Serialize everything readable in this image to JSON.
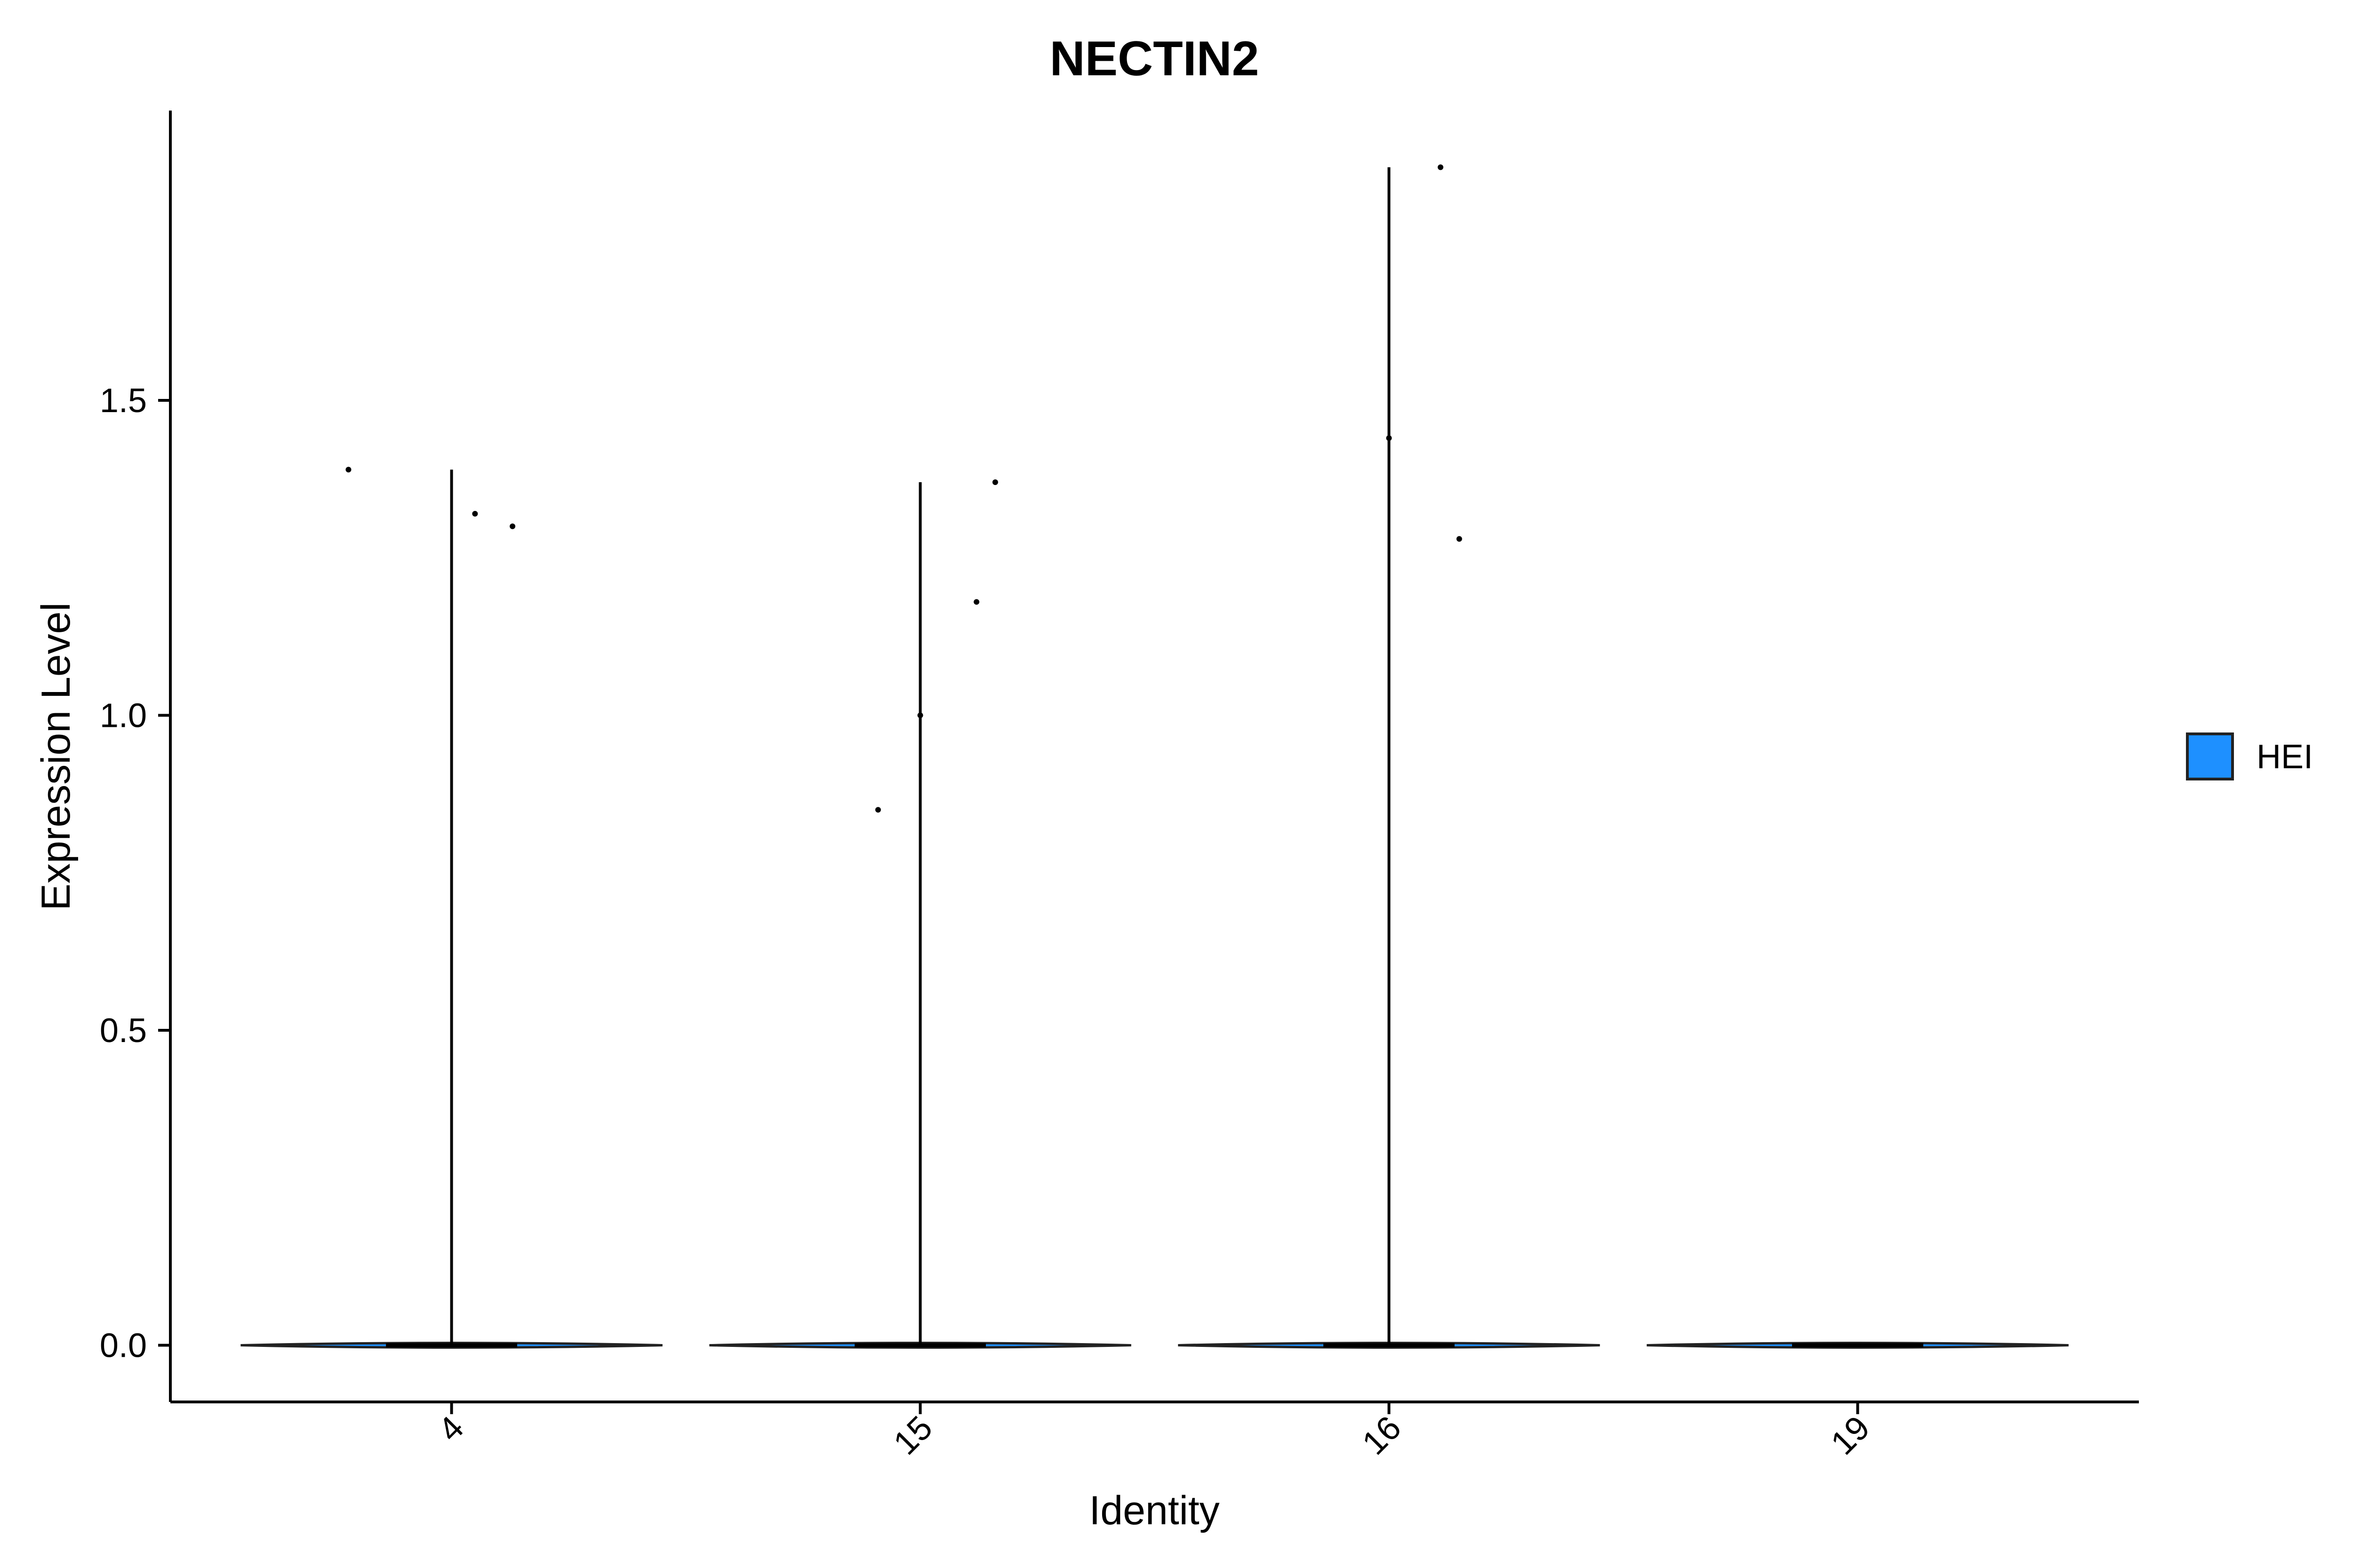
{
  "chart_data": {
    "type": "violin",
    "title": "NECTIN2",
    "xlabel": "Identity",
    "ylabel": "Expression Level",
    "categories": [
      "4",
      "15",
      "16",
      "19"
    ],
    "ylim": [
      -0.09,
      1.96
    ],
    "yticks": [
      0.0,
      0.5,
      1.0,
      1.5
    ],
    "ytick_labels": [
      "0.0",
      "0.5",
      "1.0",
      "1.5"
    ],
    "grid": false,
    "legend": {
      "position": "right",
      "entries": [
        {
          "label": "HEI",
          "color": "#1E90FF"
        }
      ]
    },
    "violins": [
      {
        "category": "4",
        "min": 0.0,
        "max": 1.39
      },
      {
        "category": "15",
        "min": 0.0,
        "max": 1.37
      },
      {
        "category": "16",
        "min": 0.0,
        "max": 1.87
      },
      {
        "category": "19",
        "min": 0.0,
        "max": 0.0
      }
    ],
    "points": [
      {
        "category": "4",
        "jitter": -0.22,
        "y": 1.39
      },
      {
        "category": "4",
        "jitter": 0.05,
        "y": 1.32
      },
      {
        "category": "4",
        "jitter": 0.13,
        "y": 1.3
      },
      {
        "category": "15",
        "jitter": -0.09,
        "y": 0.85
      },
      {
        "category": "15",
        "jitter": 0.0,
        "y": 1.0
      },
      {
        "category": "15",
        "jitter": 0.12,
        "y": 1.18
      },
      {
        "category": "15",
        "jitter": 0.16,
        "y": 1.37
      },
      {
        "category": "16",
        "jitter": 0.0,
        "y": 1.44
      },
      {
        "category": "16",
        "jitter": 0.15,
        "y": 1.28
      },
      {
        "category": "16",
        "jitter": 0.11,
        "y": 1.87
      }
    ]
  }
}
